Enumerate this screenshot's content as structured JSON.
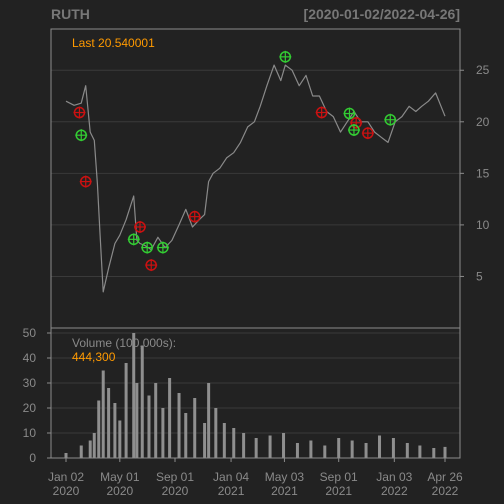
{
  "header": {
    "symbol": "RUTH",
    "date_range": "[2020-01-02/2022-04-26]"
  },
  "colors": {
    "background": "#222222",
    "panel_border": "#8c8c8c",
    "grid": "#3a3a3a",
    "price_line": "#8a8a8a",
    "volume_bar": "#8f8f8f",
    "label_highlight": "#ff9a00",
    "buy_marker": "#33cc33",
    "sell_marker": "#cc1111"
  },
  "price_panel": {
    "last_label": "Last",
    "last_value": "20.540001"
  },
  "volume_panel": {
    "label": "Volume (100,000s):",
    "last_value": "444,300"
  },
  "chart_data": [
    {
      "type": "line",
      "title": "RUTH",
      "subtitle": "[2020-01-02/2022-04-26]",
      "series": [
        {
          "name": "",
          "x": [
            "2020-01-02",
            "2020-01-20",
            "2020-02-05",
            "2020-02-15",
            "2020-02-25",
            "2020-03-05",
            "2020-03-12",
            "2020-03-18",
            "2020-03-25",
            "2020-04-06",
            "2020-04-20",
            "2020-05-01",
            "2020-05-15",
            "2020-06-01",
            "2020-06-08",
            "2020-06-15",
            "2020-06-26",
            "2020-07-10",
            "2020-07-25",
            "2020-08-10",
            "2020-08-25",
            "2020-09-10",
            "2020-09-25",
            "2020-10-10",
            "2020-10-25",
            "2020-11-06",
            "2020-11-15",
            "2020-11-25",
            "2020-12-10",
            "2020-12-25",
            "2021-01-10",
            "2021-01-25",
            "2021-02-10",
            "2021-02-25",
            "2021-03-10",
            "2021-03-25",
            "2021-04-10",
            "2021-04-25",
            "2021-05-05",
            "2021-05-20",
            "2021-06-05",
            "2021-06-20",
            "2021-07-05",
            "2021-07-20",
            "2021-08-05",
            "2021-08-20",
            "2021-09-05",
            "2021-09-20",
            "2021-10-05",
            "2021-10-20",
            "2021-11-05",
            "2021-11-20",
            "2021-12-05",
            "2021-12-20",
            "2022-01-05",
            "2022-01-20",
            "2022-02-05",
            "2022-02-20",
            "2022-03-05",
            "2022-03-20",
            "2022-04-05",
            "2022-04-26"
          ],
          "values": [
            22.0,
            21.6,
            21.8,
            23.5,
            19.0,
            18.2,
            14.0,
            9.0,
            3.5,
            5.8,
            8.2,
            9.0,
            10.5,
            12.8,
            8.5,
            8.2,
            8.0,
            7.6,
            8.8,
            7.8,
            8.5,
            10.0,
            11.5,
            9.8,
            10.5,
            11.0,
            14.2,
            15.0,
            15.5,
            16.5,
            17.0,
            18.0,
            19.5,
            20.0,
            21.5,
            23.5,
            25.5,
            24.0,
            25.5,
            25.0,
            23.5,
            24.5,
            22.5,
            22.5,
            21.0,
            20.5,
            19.0,
            20.0,
            21.0,
            20.0,
            20.0,
            19.0,
            18.5,
            18.0,
            20.0,
            20.5,
            21.5,
            21.0,
            21.5,
            22.0,
            22.8,
            20.54
          ]
        }
      ],
      "ylim": [
        0,
        29
      ],
      "yticks": [
        5,
        10,
        15,
        20,
        25
      ],
      "grid": true,
      "annotations": {
        "buy_signals": [
          {
            "x": "2020-02-05",
            "y": 18.7
          },
          {
            "x": "2020-06-01",
            "y": 8.6
          },
          {
            "x": "2020-07-01",
            "y": 7.8
          },
          {
            "x": "2020-08-05",
            "y": 7.8
          },
          {
            "x": "2021-05-05",
            "y": 26.3
          },
          {
            "x": "2021-09-25",
            "y": 20.8
          },
          {
            "x": "2021-10-05",
            "y": 19.2
          },
          {
            "x": "2021-12-25",
            "y": 20.2
          }
        ],
        "sell_signals": [
          {
            "x": "2020-02-01",
            "y": 20.9
          },
          {
            "x": "2020-02-15",
            "y": 14.2
          },
          {
            "x": "2020-06-15",
            "y": 9.8
          },
          {
            "x": "2020-07-10",
            "y": 6.1
          },
          {
            "x": "2020-10-15",
            "y": 10.8
          },
          {
            "x": "2021-07-25",
            "y": 20.9
          },
          {
            "x": "2021-10-10",
            "y": 19.9
          },
          {
            "x": "2021-11-05",
            "y": 18.9
          }
        ]
      }
    },
    {
      "type": "bar",
      "title": "",
      "ylabel": "Volume (100,000s):",
      "ylim": [
        0,
        52
      ],
      "yticks": [
        0,
        10,
        20,
        30,
        40,
        50
      ],
      "grid": true,
      "x": [
        "2020-01-02",
        "2020-02-05",
        "2020-02-25",
        "2020-03-05",
        "2020-03-15",
        "2020-03-25",
        "2020-04-06",
        "2020-04-20",
        "2020-05-01",
        "2020-05-15",
        "2020-06-01",
        "2020-06-08",
        "2020-06-20",
        "2020-07-05",
        "2020-07-20",
        "2020-08-05",
        "2020-08-20",
        "2020-09-10",
        "2020-09-25",
        "2020-10-15",
        "2020-11-06",
        "2020-11-15",
        "2020-12-01",
        "2020-12-20",
        "2021-01-10",
        "2021-02-01",
        "2021-03-01",
        "2021-04-01",
        "2021-05-01",
        "2021-06-01",
        "2021-07-01",
        "2021-08-01",
        "2021-09-01",
        "2021-10-01",
        "2021-11-01",
        "2021-12-01",
        "2022-01-01",
        "2022-02-01",
        "2022-03-01",
        "2022-04-01",
        "2022-04-26"
      ],
      "values": [
        2,
        5,
        7,
        10,
        23,
        35,
        28,
        22,
        15,
        38,
        50,
        30,
        45,
        25,
        30,
        20,
        32,
        26,
        18,
        24,
        14,
        30,
        20,
        14,
        12,
        10,
        8,
        9,
        10,
        6,
        7,
        5,
        8,
        7,
        6,
        9,
        8,
        6,
        5,
        4,
        4.44
      ]
    }
  ],
  "x_axis": {
    "ticks": [
      {
        "date": "2020-01-02",
        "line1": "Jan 02",
        "line2": "2020"
      },
      {
        "date": "2020-05-01",
        "line1": "May 01",
        "line2": "2020"
      },
      {
        "date": "2020-09-01",
        "line1": "Sep 01",
        "line2": "2020"
      },
      {
        "date": "2021-01-04",
        "line1": "Jan 04",
        "line2": "2021"
      },
      {
        "date": "2021-05-03",
        "line1": "May 03",
        "line2": "2021"
      },
      {
        "date": "2021-09-01",
        "line1": "Sep 01",
        "line2": "2021"
      },
      {
        "date": "2022-01-03",
        "line1": "Jan 03",
        "line2": "2022"
      },
      {
        "date": "2022-04-26",
        "line1": "Apr 26",
        "line2": "2022"
      }
    ]
  }
}
